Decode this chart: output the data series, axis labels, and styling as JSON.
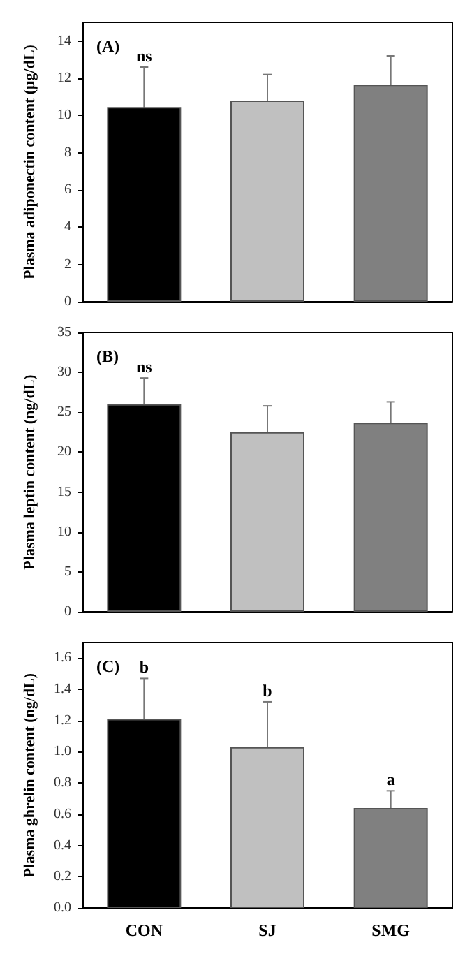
{
  "chart_data": [
    {
      "type": "bar",
      "title": "(A)",
      "ylabel": "Plasma adiponectin content (μg/dL)",
      "categories": [
        null,
        null,
        null
      ],
      "values": [
        10.45,
        10.8,
        11.65
      ],
      "colors": [
        "#000000",
        "#c0c0c0",
        "#808080"
      ],
      "errors": [
        2.15,
        1.4,
        1.55
      ],
      "ylim": [
        0,
        15
      ],
      "yticks": [
        0,
        2,
        4,
        6,
        8,
        10,
        12,
        14
      ],
      "tick_labels": "y",
      "grid": false,
      "annotations": [
        "ns"
      ]
    },
    {
      "type": "bar",
      "title": "(B)",
      "ylabel": "Plasma leptin content (ng/dL)",
      "categories": [
        null,
        null,
        null
      ],
      "values": [
        26.0,
        22.5,
        23.7
      ],
      "colors": [
        "#000000",
        "#c0c0c0",
        "#808080"
      ],
      "errors": [
        3.3,
        3.3,
        2.6
      ],
      "ylim": [
        0,
        35
      ],
      "yticks": [
        0,
        5,
        10,
        15,
        20,
        25,
        30,
        35
      ],
      "tick_labels": "y",
      "grid": false,
      "annotations": [
        "ns"
      ]
    },
    {
      "type": "bar",
      "title": "(C)",
      "ylabel": "Plasma ghrelin content (ng/dL)",
      "categories": [
        "CON",
        "SJ",
        "SMG"
      ],
      "values": [
        1.21,
        1.03,
        0.64
      ],
      "colors": [
        "#000000",
        "#c0c0c0",
        "#808080"
      ],
      "errors": [
        0.26,
        0.29,
        0.11
      ],
      "ylim": [
        0,
        1.7
      ],
      "yticks": [
        {
          "value": 0,
          "label": "0.0"
        },
        {
          "value": 0.2,
          "label": "0.2"
        },
        {
          "value": 0.4,
          "label": "0.4"
        },
        {
          "value": 0.6,
          "label": "0.6"
        },
        {
          "value": 0.8,
          "label": "0.8"
        },
        {
          "value": 1.0,
          "label": "1.0"
        },
        {
          "value": 1.2,
          "label": "1.2"
        },
        {
          "value": 1.4,
          "label": "1.4"
        },
        {
          "value": 1.6,
          "label": "1.6"
        }
      ],
      "grid": false,
      "annotations": [
        "b",
        "b",
        "a"
      ]
    }
  ]
}
